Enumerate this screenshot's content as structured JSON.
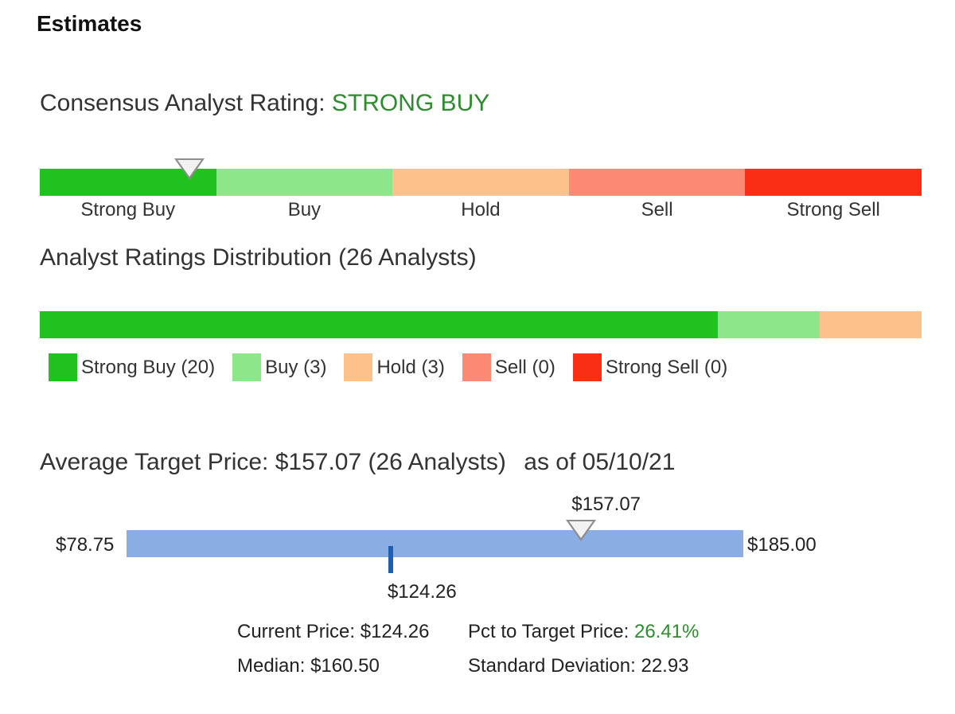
{
  "page": {
    "title": "Estimates"
  },
  "consensus": {
    "label": "Consensus Analyst Rating:",
    "value": "STRONG BUY",
    "value_color": "#2e8b2e",
    "segments": [
      {
        "label": "Strong Buy",
        "color": "#1fc21f"
      },
      {
        "label": "Buy",
        "color": "#8ee68a"
      },
      {
        "label": "Hold",
        "color": "#fdc18b"
      },
      {
        "label": "Sell",
        "color": "#fa8a73"
      },
      {
        "label": "Strong Sell",
        "color": "#fa2e14"
      }
    ],
    "selected_index": 0
  },
  "distribution": {
    "heading": "Analyst Ratings Distribution (26 Analysts)",
    "total": 26,
    "items": [
      {
        "label": "Strong Buy (20)",
        "count": 20,
        "color": "#1fc21f"
      },
      {
        "label": "Buy (3)",
        "count": 3,
        "color": "#8ee68a"
      },
      {
        "label": "Hold (3)",
        "count": 3,
        "color": "#fdc18b"
      },
      {
        "label": "Sell (0)",
        "count": 0,
        "color": "#fa8a73"
      },
      {
        "label": "Strong Sell (0)",
        "count": 0,
        "color": "#fa2e14"
      }
    ]
  },
  "target": {
    "heading": "Average Target Price: $157.07 (26 Analysts)",
    "as_of": "as of 05/10/21",
    "low": 78.75,
    "high": 185.0,
    "average": 157.07,
    "current": 124.26,
    "low_label": "$78.75",
    "high_label": "$185.00",
    "average_label": "$157.07",
    "current_label": "$124.26",
    "stats": {
      "current_price_label": "Current Price:",
      "current_price_value": "$124.26",
      "pct_label": "Pct to Target Price:",
      "pct_value": "26.41%",
      "median_label": "Median:",
      "median_value": "$160.50",
      "std_label": "Standard Deviation:",
      "std_value": "22.93"
    }
  }
}
